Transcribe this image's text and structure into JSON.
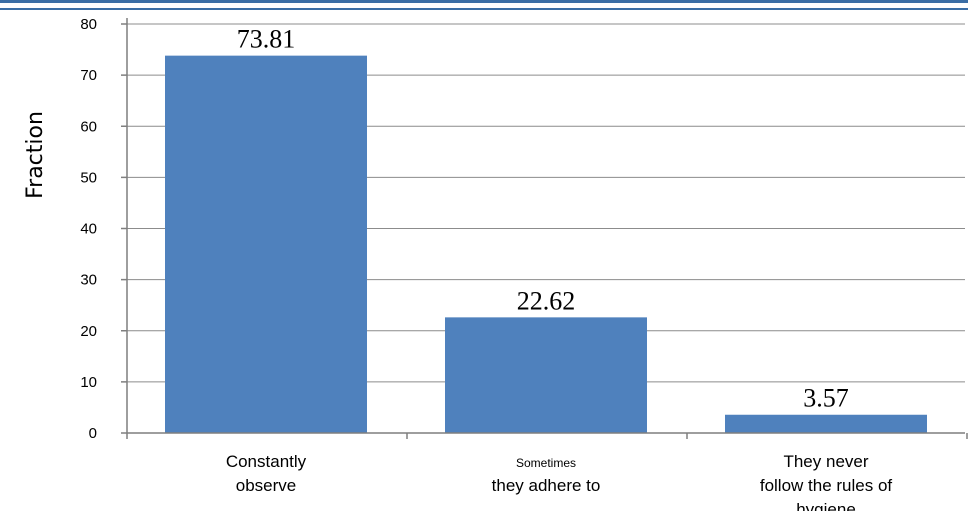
{
  "chart_data": {
    "type": "bar",
    "title": "",
    "xlabel": "",
    "ylabel": "Fraction",
    "ylim": [
      0,
      80
    ],
    "yticks": [
      0,
      10,
      20,
      30,
      40,
      50,
      60,
      70,
      80
    ],
    "grid": true,
    "legend": "none",
    "bar_color": "#4f81bd",
    "categories": [
      [
        "Constantly",
        "observe"
      ],
      [
        "Sometimes",
        "they adhere to"
      ],
      [
        "They never",
        "follow the rules of",
        "hygiene"
      ]
    ],
    "values": [
      73.81,
      22.62,
      3.57
    ],
    "data_labels": [
      "73.81",
      "22.62",
      "3.57"
    ]
  },
  "colors": {
    "top_border": "#3b6ea5",
    "grid": "#8c8c8c",
    "axis": "#7f7f7f"
  }
}
